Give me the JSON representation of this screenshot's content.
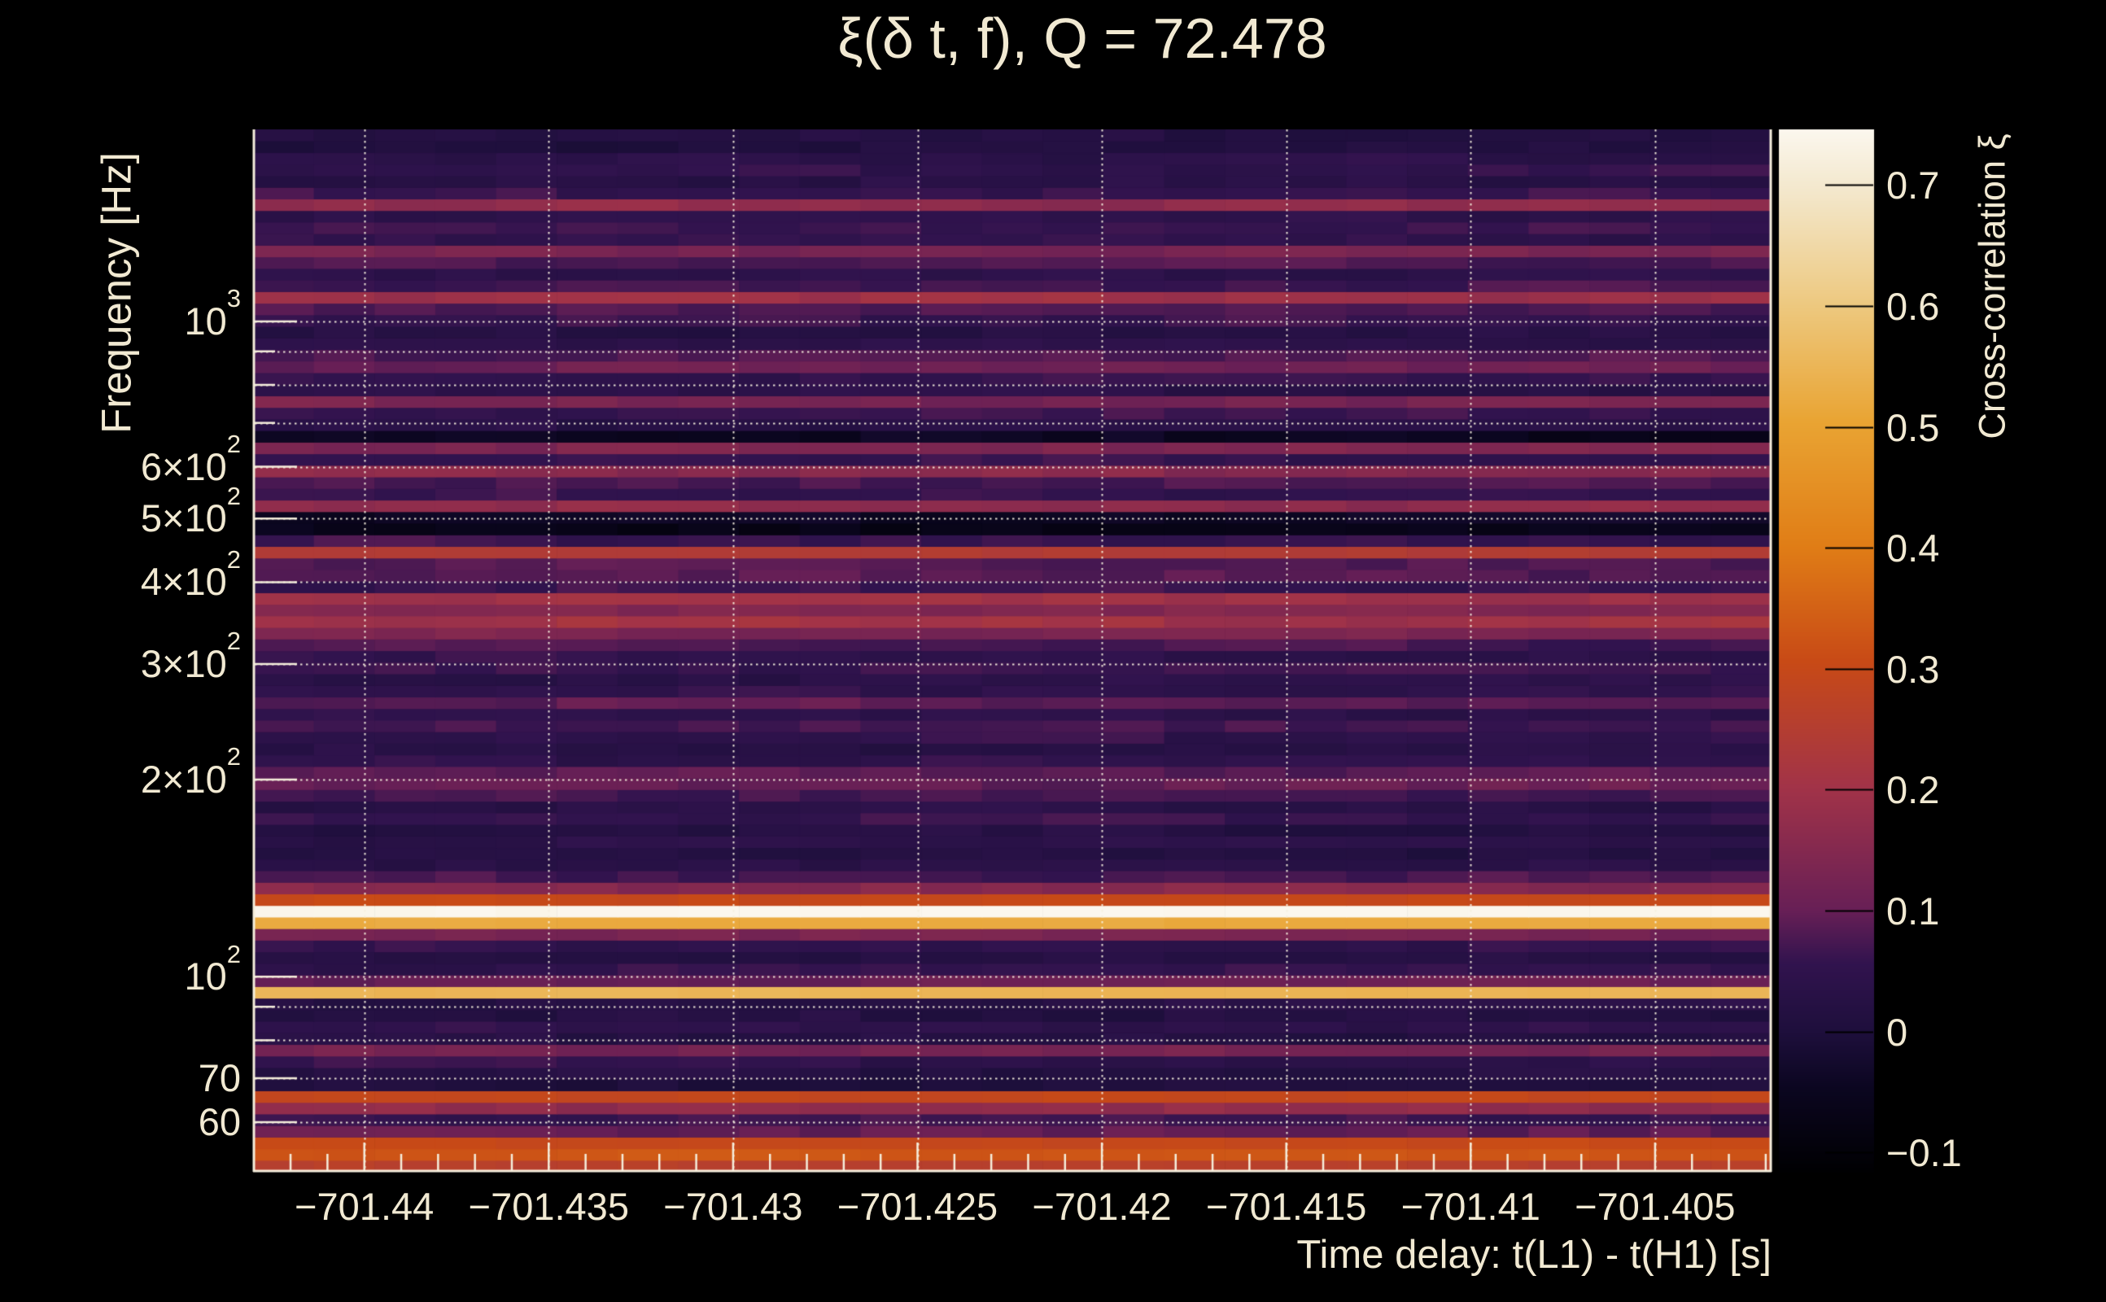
{
  "page": {
    "background": "#000000"
  },
  "colors": {
    "text": "#f1e9d2",
    "axis": "#f5eedc",
    "grid": "#f6f0e0",
    "colorbar_tick": "#000000",
    "background": "#000000"
  },
  "chart_data": {
    "type": "heatmap",
    "title": "ξ(δ t, f), Q = 72.478",
    "q_value": 72.478,
    "xlabel": "Time delay: t(L1) - t(H1) [s]",
    "ylabel": "Frequency [Hz]",
    "colorbar_label": "Cross-correlation ξ",
    "x_range": [
      -701.443,
      -701.4018
    ],
    "x_minor_tick_step": 0.001,
    "x_ticks": [
      {
        "value": -701.44,
        "label": "−701.44"
      },
      {
        "value": -701.435,
        "label": "−701.435"
      },
      {
        "value": -701.43,
        "label": "−701.43"
      },
      {
        "value": -701.425,
        "label": "−701.425"
      },
      {
        "value": -701.42,
        "label": "−701.42"
      },
      {
        "value": -701.415,
        "label": "−701.415"
      },
      {
        "value": -701.41,
        "label": "−701.41"
      },
      {
        "value": -701.405,
        "label": "−701.405"
      }
    ],
    "y_scale": "log",
    "y_range_hz": [
      50.4,
      1963
    ],
    "y_ticks": [
      {
        "value": 1000,
        "base": "10",
        "exp": "3"
      },
      {
        "value": 600,
        "base": "6×10",
        "exp": "2"
      },
      {
        "value": 500,
        "base": "5×10",
        "exp": "2"
      },
      {
        "value": 400,
        "base": "4×10",
        "exp": "2"
      },
      {
        "value": 300,
        "base": "3×10",
        "exp": "2"
      },
      {
        "value": 200,
        "base": "2×10",
        "exp": "2"
      },
      {
        "value": 100,
        "base": "10",
        "exp": "2"
      },
      {
        "value": 70,
        "base": "70",
        "exp": ""
      },
      {
        "value": 60,
        "base": "60",
        "exp": ""
      }
    ],
    "y_minor_ticks": [
      900,
      800,
      700,
      90,
      80
    ],
    "y_gridlines": [
      1000,
      900,
      800,
      700,
      600,
      500,
      400,
      300,
      200,
      100,
      90,
      80,
      70,
      60
    ],
    "grid_style": "dotted",
    "legend_position": "right-colorbar",
    "colorbar": {
      "min": -0.116,
      "max": 0.746,
      "ticks": [
        {
          "value": 0.7,
          "label": "0.7"
        },
        {
          "value": 0.6,
          "label": "0.6"
        },
        {
          "value": 0.5,
          "label": "0.5"
        },
        {
          "value": 0.4,
          "label": "0.4"
        },
        {
          "value": 0.3,
          "label": "0.3"
        },
        {
          "value": 0.2,
          "label": "0.2"
        },
        {
          "value": 0.1,
          "label": "0.1"
        },
        {
          "value": 0.0,
          "label": "0"
        },
        {
          "value": -0.1,
          "label": "−0.1"
        }
      ]
    },
    "colormap_stops": [
      [
        0.0,
        "#000002"
      ],
      [
        0.08,
        "#0b0620"
      ],
      [
        0.135,
        "#1e0f3c"
      ],
      [
        0.2,
        "#31134e"
      ],
      [
        0.25,
        "#671f56"
      ],
      [
        0.37,
        "#a23348"
      ],
      [
        0.49,
        "#c84a16"
      ],
      [
        0.6,
        "#e07d16"
      ],
      [
        0.72,
        "#e9a433"
      ],
      [
        0.83,
        "#edc87e"
      ],
      [
        0.94,
        "#f3e7cb"
      ],
      [
        1.0,
        "#fbf7ee"
      ]
    ],
    "rows": {
      "freq_hz": [
        50.4,
        52.5,
        54.7,
        57.0,
        59.4,
        61.9,
        64.5,
        67.2,
        70.0,
        73.0,
        76.1,
        79.3,
        82.6,
        86.1,
        89.7,
        93.4,
        97.4,
        101.5,
        105.7,
        110.2,
        114.8,
        119.6,
        124.6,
        129.9,
        135.3,
        141.0,
        146.9,
        153.1,
        159.5,
        166.2,
        173.2,
        180.5,
        188.1,
        196.0,
        204.2,
        212.8,
        221.7,
        231.0,
        240.7,
        250.8,
        261.3,
        272.3,
        283.7,
        295.6,
        308.0,
        320.9,
        334.4,
        348.4,
        363.0,
        378.2,
        394.1,
        410.6,
        427.8,
        445.7,
        464.4,
        483.9,
        504.2,
        525.3,
        547.3,
        570.2,
        594.1,
        619.0,
        645.0,
        672.0,
        700.1,
        729.5,
        760.1,
        791.9,
        825.1,
        859.7,
        895.7,
        933.2,
        972.3,
        1013.0,
        1055.5,
        1099.7,
        1145.8,
        1193.8,
        1243.8,
        1295.9,
        1350.2,
        1406.8,
        1465.7,
        1527.1,
        1591.1,
        1657.7,
        1727.2,
        1799.5,
        1874.9,
        1953.4
      ],
      "xi": [
        0.26,
        0.33,
        0.3,
        0.1,
        0.06,
        0.17,
        0.29,
        0.01,
        0.02,
        0.05,
        0.13,
        0.02,
        0.04,
        0.02,
        0.03,
        0.55,
        0.1,
        0.05,
        0.02,
        0.05,
        0.13,
        0.52,
        0.745,
        0.3,
        0.15,
        0.07,
        0.03,
        0.02,
        0.04,
        0.02,
        0.06,
        0.03,
        0.07,
        0.1,
        0.09,
        0.05,
        0.03,
        0.05,
        0.07,
        0.04,
        0.09,
        0.05,
        0.04,
        0.06,
        0.05,
        0.07,
        0.13,
        0.2,
        0.15,
        0.2,
        0.06,
        0.08,
        0.08,
        0.24,
        0.06,
        -0.06,
        -0.04,
        0.17,
        0.06,
        0.08,
        0.16,
        0.06,
        0.14,
        -0.05,
        0.03,
        0.06,
        0.13,
        0.04,
        0.06,
        0.11,
        0.08,
        0.04,
        0.02,
        0.06,
        0.08,
        0.19,
        0.07,
        0.04,
        0.08,
        0.13,
        0.05,
        0.07,
        0.05,
        0.17,
        0.06,
        0.03,
        0.05,
        0.04,
        0.01,
        0.02
      ]
    },
    "notable_lines": [
      {
        "freq_hz": 124.6,
        "xi": 0.745,
        "appearance": "bright cream horizontal line"
      },
      {
        "freq_hz": 93.4,
        "xi": 0.55,
        "appearance": "orange-gold horizontal line"
      },
      {
        "freq_hz": 64.5,
        "xi": 0.29,
        "appearance": "red-orange horizontal line"
      },
      {
        "freq_hz": 52.5,
        "xi": 0.33,
        "appearance": "orange band at bottom edge"
      },
      {
        "freq_hz": 445.7,
        "xi": 0.24,
        "appearance": "red stripe"
      }
    ]
  }
}
